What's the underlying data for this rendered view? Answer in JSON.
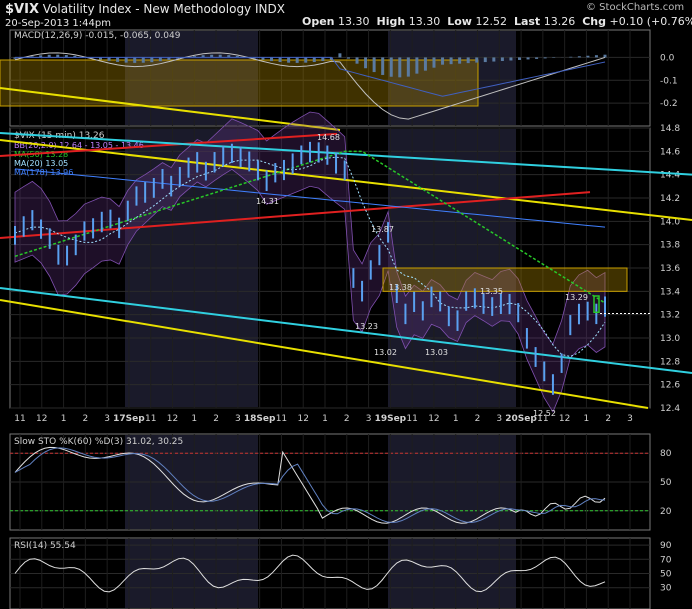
{
  "header": {
    "symbol": "$VIX",
    "name": "Volatility Index - New Methodology",
    "exchange": "INDX",
    "datetime": "20-Sep-2013 1:44pm",
    "open_label": "Open",
    "open": "13.30",
    "high_label": "High",
    "high": "13.30",
    "low_label": "Low",
    "low": "12.52",
    "last_label": "Last",
    "last": "13.26",
    "chg_label": "Chg",
    "chg": "+0.10 (+0.76%)",
    "watermark": "© StockCharts.com",
    "up_color": "#28c828"
  },
  "chart_data": [
    {
      "panel": "MACD",
      "type": "line",
      "legend": [
        "MACD(12,26,9) -0.015, -0.065, 0.049"
      ],
      "ylim": [
        -0.3,
        0.12
      ],
      "y_ticks": [
        "0.0",
        "-0.1",
        "-0.2"
      ],
      "y_tick_values": [
        0.0,
        -0.1,
        -0.2
      ],
      "grid": true
    },
    {
      "panel": "Price",
      "type": "ohlc",
      "title": "$VIX (15 min) 13.26",
      "legend": [
        {
          "label": "BB(20,2.0) 12.64 - 13.05 - 13.46",
          "color": "#c080ff"
        },
        {
          "label": "MA(50) 13.28",
          "color": "#28c828"
        },
        {
          "label": "MA(20) 13.05",
          "color": "#a0e0ff"
        },
        {
          "label": "MA(178) 13.96",
          "color": "#4080ff"
        }
      ],
      "ylim": [
        12.4,
        14.8
      ],
      "y_ticks": [
        "14.8",
        "14.6",
        "14.4",
        "14.2",
        "14.0",
        "13.8",
        "13.6",
        "13.4",
        "13.2",
        "13.0",
        "12.8",
        "12.6",
        "12.4"
      ],
      "y_tick_values": [
        14.8,
        14.6,
        14.4,
        14.2,
        14.0,
        13.8,
        13.6,
        13.4,
        13.2,
        13.0,
        12.8,
        12.6,
        12.4
      ],
      "x_ticks": [
        "11",
        "12",
        "1",
        "2",
        "3",
        "17Sep",
        "11",
        "12",
        "1",
        "2",
        "3",
        "18Sep",
        "11",
        "12",
        "1",
        "2",
        "3",
        "19Sep",
        "11",
        "12",
        "1",
        "2",
        "3",
        "20Sep",
        "11",
        "12",
        "1",
        "2",
        "3"
      ],
      "annotations": [
        {
          "text": "14.68",
          "value": 14.68
        },
        {
          "text": "14.31",
          "value": 14.31
        },
        {
          "text": "13.87",
          "value": 13.87
        },
        {
          "text": "13.38",
          "value": 13.38
        },
        {
          "text": "13.35",
          "value": 13.35
        },
        {
          "text": "13.29",
          "value": 13.29
        },
        {
          "text": "13.23",
          "value": 13.23
        },
        {
          "text": "13.02",
          "value": 13.02
        },
        {
          "text": "13.03",
          "value": 13.03
        },
        {
          "text": "12.52",
          "value": 12.52
        }
      ],
      "close_series": [
        13.9,
        13.95,
        14.0,
        13.95,
        13.85,
        13.7,
        13.72,
        13.8,
        13.9,
        13.95,
        14.0,
        14.0,
        13.95,
        14.1,
        14.2,
        14.25,
        14.3,
        14.35,
        14.3,
        14.4,
        14.45,
        14.5,
        14.45,
        14.5,
        14.55,
        14.6,
        14.55,
        14.5,
        14.45,
        14.35,
        14.4,
        14.45,
        14.5,
        14.55,
        14.6,
        14.6,
        14.55,
        14.5,
        14.45,
        13.5,
        13.4,
        13.6,
        13.7,
        13.9,
        13.4,
        13.2,
        13.3,
        13.25,
        13.35,
        13.3,
        13.2,
        13.15,
        13.3,
        13.35,
        13.3,
        13.25,
        13.3,
        13.3,
        13.2,
        13.0,
        12.85,
        12.7,
        12.6,
        12.8,
        13.1,
        13.2,
        13.25,
        13.2,
        13.26
      ],
      "grid": true
    },
    {
      "panel": "Slow STO",
      "type": "line",
      "legend": [
        "Slow STO %K(60) %D(3) 31.02, 30.25"
      ],
      "ylim": [
        0,
        100
      ],
      "y_ticks": [
        "80",
        "50",
        "20"
      ],
      "y_tick_values": [
        80,
        50,
        20
      ],
      "reference_lines": [
        {
          "value": 80,
          "color": "#c83232"
        },
        {
          "value": 20,
          "color": "#32c832"
        }
      ],
      "grid": true
    },
    {
      "panel": "RSI",
      "type": "line",
      "legend": [
        "RSI(14) 55.54"
      ],
      "ylim": [
        0,
        100
      ],
      "y_ticks": [
        "90",
        "70",
        "50",
        "30"
      ],
      "y_tick_values": [
        90,
        70,
        50,
        30
      ],
      "grid": true
    }
  ]
}
